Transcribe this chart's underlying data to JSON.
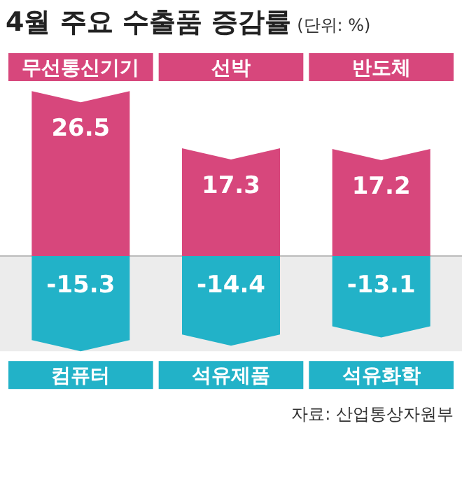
{
  "chart_data": {
    "type": "bar",
    "title": "4월 주요 수출품 증감률",
    "subtitle": "(단위: %)",
    "categories": [
      "무선통신기기",
      "선박",
      "반도체"
    ],
    "stacked": true,
    "data_labels": true,
    "series": [
      {
        "color": "#d7477c",
        "values": [
          26.5,
          17.3,
          17.2
        ]
      },
      {
        "color": "#22b2c8",
        "values": [
          -15.3,
          -14.4,
          -13.1
        ]
      }
    ],
    "bands": [
      {
        "axis": "y",
        "from": -15.3,
        "to": 0,
        "color": "#ececec"
      }
    ],
    "annotations": [
      "컴퓨터",
      "석유제품",
      "석유화학",
      "자료: 산업통상자원부"
    ]
  }
}
